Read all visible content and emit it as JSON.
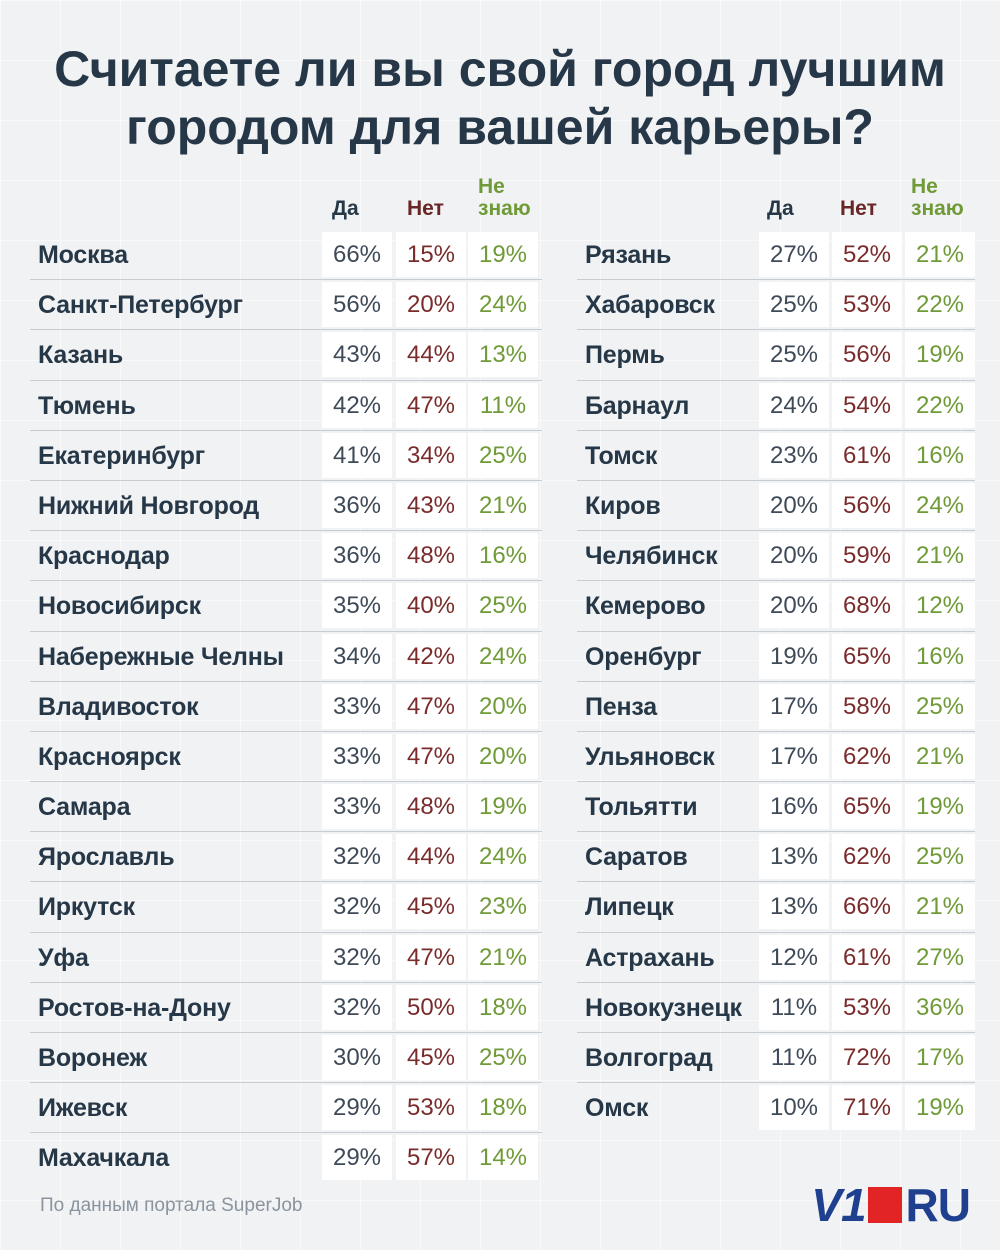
{
  "title_line1": "Считаете ли вы свой город лучшим",
  "title_line2": "городом для вашей карьеры?",
  "headers": {
    "yes": "Да",
    "no": "Нет",
    "dk_line1": "Не",
    "dk_line2": "знаю"
  },
  "colors": {
    "title": "#263747",
    "yes": "#263747",
    "no": "#7a2b2b",
    "dk": "#6f9a38",
    "logo_blue": "#1f3f8f",
    "logo_red": "#e32424"
  },
  "footer": "По данным портала SuperJob",
  "logo": {
    "left": "V1",
    "right": "RU"
  },
  "chart_data": {
    "type": "table",
    "title": "Считаете ли вы свой город лучшим городом для вашей карьеры?",
    "columns": [
      "Да",
      "Нет",
      "Не знаю"
    ],
    "left_rows": [
      {
        "city": "Москва",
        "yes": "66%",
        "no": "15%",
        "dk": "19%"
      },
      {
        "city": "Санкт-Петербург",
        "yes": "56%",
        "no": "20%",
        "dk": "24%"
      },
      {
        "city": "Казань",
        "yes": "43%",
        "no": "44%",
        "dk": "13%"
      },
      {
        "city": "Тюмень",
        "yes": "42%",
        "no": "47%",
        "dk": "11%"
      },
      {
        "city": "Екатеринбург",
        "yes": "41%",
        "no": "34%",
        "dk": "25%"
      },
      {
        "city": "Нижний Новгород",
        "yes": "36%",
        "no": "43%",
        "dk": "21%"
      },
      {
        "city": "Краснодар",
        "yes": "36%",
        "no": "48%",
        "dk": "16%"
      },
      {
        "city": "Новосибирск",
        "yes": "35%",
        "no": "40%",
        "dk": "25%"
      },
      {
        "city": "Набережные Челны",
        "yes": "34%",
        "no": "42%",
        "dk": "24%"
      },
      {
        "city": "Владивосток",
        "yes": "33%",
        "no": "47%",
        "dk": "20%"
      },
      {
        "city": "Красноярск",
        "yes": "33%",
        "no": "47%",
        "dk": "20%"
      },
      {
        "city": "Самара",
        "yes": "33%",
        "no": "48%",
        "dk": "19%"
      },
      {
        "city": "Ярославль",
        "yes": "32%",
        "no": "44%",
        "dk": "24%"
      },
      {
        "city": "Иркутск",
        "yes": "32%",
        "no": "45%",
        "dk": "23%"
      },
      {
        "city": "Уфа",
        "yes": "32%",
        "no": "47%",
        "dk": "21%"
      },
      {
        "city": "Ростов-на-Дону",
        "yes": "32%",
        "no": "50%",
        "dk": "18%"
      },
      {
        "city": "Воронеж",
        "yes": "30%",
        "no": "45%",
        "dk": "25%"
      },
      {
        "city": "Ижевск",
        "yes": "29%",
        "no": "53%",
        "dk": "18%"
      },
      {
        "city": "Махачкала",
        "yes": "29%",
        "no": "57%",
        "dk": "14%"
      }
    ],
    "right_rows": [
      {
        "city": "Рязань",
        "yes": "27%",
        "no": "52%",
        "dk": "21%"
      },
      {
        "city": "Хабаровск",
        "yes": "25%",
        "no": "53%",
        "dk": "22%"
      },
      {
        "city": "Пермь",
        "yes": "25%",
        "no": "56%",
        "dk": "19%"
      },
      {
        "city": "Барнаул",
        "yes": "24%",
        "no": "54%",
        "dk": "22%"
      },
      {
        "city": "Томск",
        "yes": "23%",
        "no": "61%",
        "dk": "16%"
      },
      {
        "city": "Киров",
        "yes": "20%",
        "no": "56%",
        "dk": "24%"
      },
      {
        "city": "Челябинск",
        "yes": "20%",
        "no": "59%",
        "dk": "21%"
      },
      {
        "city": "Кемерово",
        "yes": "20%",
        "no": "68%",
        "dk": "12%"
      },
      {
        "city": "Оренбург",
        "yes": "19%",
        "no": "65%",
        "dk": "16%"
      },
      {
        "city": "Пенза",
        "yes": "17%",
        "no": "58%",
        "dk": "25%"
      },
      {
        "city": "Ульяновск",
        "yes": "17%",
        "no": "62%",
        "dk": "21%"
      },
      {
        "city": "Тольятти",
        "yes": "16%",
        "no": "65%",
        "dk": "19%"
      },
      {
        "city": "Саратов",
        "yes": "13%",
        "no": "62%",
        "dk": "25%"
      },
      {
        "city": "Липецк",
        "yes": "13%",
        "no": "66%",
        "dk": "21%"
      },
      {
        "city": "Астрахань",
        "yes": "12%",
        "no": "61%",
        "dk": "27%"
      },
      {
        "city": "Новокузнецк",
        "yes": "11%",
        "no": "53%",
        "dk": "36%"
      },
      {
        "city": "Волгоград",
        "yes": "11%",
        "no": "72%",
        "dk": "17%"
      },
      {
        "city": "Омск",
        "yes": "10%",
        "no": "71%",
        "dk": "19%"
      }
    ]
  }
}
